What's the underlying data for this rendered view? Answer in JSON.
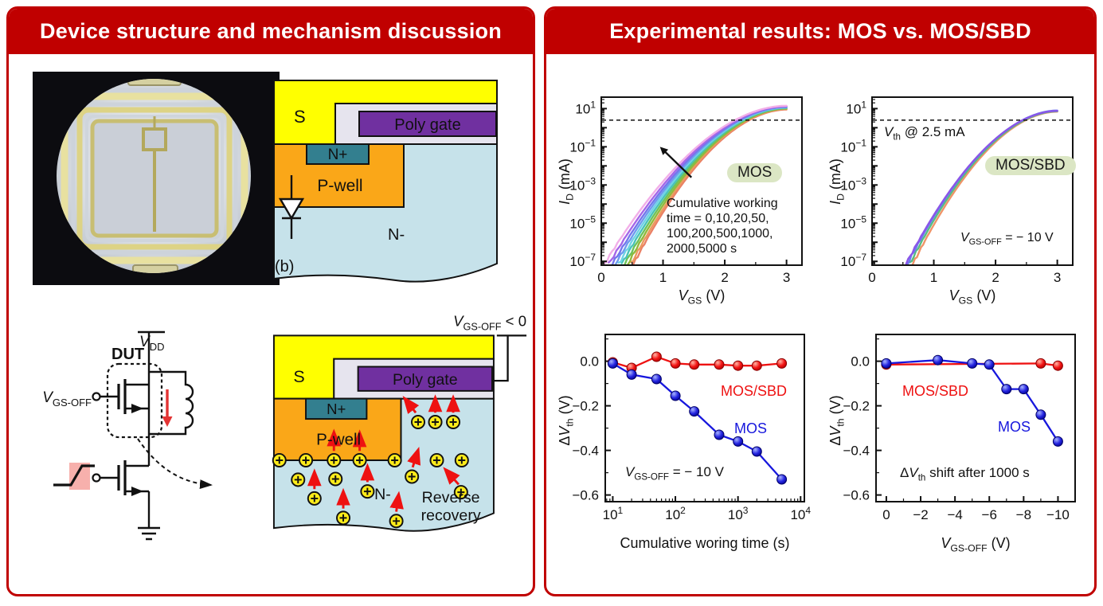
{
  "theme": {
    "accent_red": "#c00000",
    "badge_bg": "#dbe6c4",
    "series_red": "#ee1111",
    "series_blue": "#1717dd"
  },
  "left_panel": {
    "title": "Device structure and mechanism discussion",
    "cross_section_b": {
      "s": "S",
      "poly": "Poly gate",
      "nplus": "N+",
      "pwell": "P-well",
      "nminus": "N-",
      "tag": "(b)"
    },
    "circuit": {
      "vdd_main": "V",
      "vdd_sub": "DD",
      "dut": "DUT",
      "vgs_main": "V",
      "vgs_sub": "GS-OFF"
    },
    "cross_section_stress": {
      "bias_main": "V",
      "bias_sub": "GS-OFF",
      "bias_post": " < 0",
      "s": "S",
      "poly": "Poly gate",
      "nplus": "N+",
      "pwell": "P-well",
      "nminus": "N-",
      "rev1": "Reverse",
      "rev2": "recovery"
    }
  },
  "right_panel": {
    "title": "Experimental results: MOS vs. MOS/SBD"
  },
  "chart_data": [
    {
      "kind": "transfer",
      "type": "line",
      "badge": "MOS",
      "xlabel": {
        "main": "V",
        "sub": "GS",
        "unit": " (V)"
      },
      "ylabel": {
        "main": "I",
        "sub": "D",
        "unit": " (mA)"
      },
      "x_range": [
        0,
        3.25
      ],
      "x_ticks": [
        0,
        1,
        2,
        3
      ],
      "y_scale": "log",
      "y_exp_range": [
        -7.2,
        1.6
      ],
      "y_tick_exponents": [
        1,
        -1,
        -3,
        -5,
        -7
      ],
      "threshold_mA": 2.5,
      "note_lines": [
        "Cumulative working",
        "time = 0,10,20,50,",
        "100,200,500,1000,",
        "2000,5000 s"
      ],
      "arrow": {
        "from_x": 1.46,
        "from_logI": -2.6,
        "to_x": 0.95,
        "to_logI": -1.0
      },
      "series": [
        {
          "time_s": 0,
          "color": "#ea8066",
          "onset_V": 0.52,
          "logI_at_3V": 0.95
        },
        {
          "time_s": 10,
          "color": "#eb9a5e",
          "onset_V": 0.48,
          "logI_at_3V": 0.98
        },
        {
          "time_s": 20,
          "color": "#93b83a",
          "onset_V": 0.43,
          "logI_at_3V": 1.0
        },
        {
          "time_s": 50,
          "color": "#6cc35a",
          "onset_V": 0.38,
          "logI_at_3V": 1.02
        },
        {
          "time_s": 100,
          "color": "#49c3b8",
          "onset_V": 0.33,
          "logI_at_3V": 1.04
        },
        {
          "time_s": 200,
          "color": "#6fd3e6",
          "onset_V": 0.28,
          "logI_at_3V": 1.06
        },
        {
          "time_s": 500,
          "color": "#6f9cee",
          "onset_V": 0.23,
          "logI_at_3V": 1.08
        },
        {
          "time_s": 1000,
          "color": "#7576ec",
          "onset_V": 0.18,
          "logI_at_3V": 1.1
        },
        {
          "time_s": 2000,
          "color": "#a566e8",
          "onset_V": 0.12,
          "logI_at_3V": 1.12
        },
        {
          "time_s": 5000,
          "color": "#f2aee8",
          "onset_V": 0.05,
          "logI_at_3V": 1.15
        }
      ]
    },
    {
      "kind": "transfer",
      "type": "line",
      "badge": "MOS/SBD",
      "xlabel": {
        "main": "V",
        "sub": "GS",
        "unit": " (V)"
      },
      "ylabel": {
        "main": "I",
        "sub": "D",
        "unit": " (mA)"
      },
      "x_range": [
        0,
        3.25
      ],
      "x_ticks": [
        0,
        1,
        2,
        3
      ],
      "y_scale": "log",
      "y_exp_range": [
        -7.2,
        1.6
      ],
      "y_tick_exponents": [
        1,
        -1,
        -3,
        -5,
        -7
      ],
      "threshold_mA": 2.5,
      "vth_note": {
        "main": "V",
        "sub": "th",
        "post": " @ 2.5 mA"
      },
      "bias_note": {
        "main": "V",
        "sub": "GS-OFF",
        "post": " = − 10 V"
      },
      "series": [
        {
          "color": "#ef9468",
          "onset_V": 0.66,
          "logI_at_3V": 0.84
        },
        {
          "color": "#57bd82",
          "onset_V": 0.61,
          "logI_at_3V": 0.86
        },
        {
          "color": "#6b7cf0",
          "onset_V": 0.57,
          "logI_at_3V": 0.9
        },
        {
          "color": "#8a55e8",
          "onset_V": 0.55,
          "logI_at_3V": 0.88
        }
      ]
    },
    {
      "kind": "shift",
      "type": "scatter-line",
      "x_log": true,
      "xlabel_text": "Cumulative woring time (s)",
      "ylabel": {
        "prefix": "Δ",
        "main": "V",
        "sub": "th",
        "unit": " (V)"
      },
      "x_exp_range": [
        0.88,
        4.06
      ],
      "x_tick_exponents": [
        1,
        2,
        3,
        4
      ],
      "y_range": [
        -0.63,
        0.12
      ],
      "y_ticks": [
        0,
        -0.2,
        -0.4,
        -0.6
      ],
      "bias_note": {
        "main": "V",
        "sub": "GS-OFF",
        "post": " = − 10 V"
      },
      "series": [
        {
          "name": "MOS/SBD",
          "color": "#ee1111",
          "x": [
            10,
            20,
            50,
            100,
            200,
            500,
            1000,
            2000,
            5000
          ],
          "y": [
            -0.005,
            -0.03,
            0.02,
            -0.01,
            -0.015,
            -0.015,
            -0.02,
            -0.02,
            -0.01
          ]
        },
        {
          "name": "MOS",
          "color": "#1717dd",
          "x": [
            10,
            20,
            50,
            100,
            200,
            500,
            1000,
            2000,
            5000
          ],
          "y": [
            -0.01,
            -0.06,
            -0.08,
            -0.155,
            -0.225,
            -0.33,
            -0.36,
            -0.405,
            -0.53
          ]
        }
      ]
    },
    {
      "kind": "shift",
      "type": "scatter-line",
      "x_log": false,
      "xlabel": {
        "main": "V",
        "sub": "GS-OFF",
        "unit": " (V)"
      },
      "ylabel": {
        "prefix": "Δ",
        "main": "V",
        "sub": "th",
        "unit": " (V)"
      },
      "x_range": [
        0.6,
        -11
      ],
      "x_ticks": [
        0,
        -2,
        -4,
        -6,
        -8,
        -10
      ],
      "y_range": [
        -0.63,
        0.12
      ],
      "y_ticks": [
        0,
        -0.2,
        -0.4,
        -0.6
      ],
      "note": {
        "prefix": "Δ",
        "main": "V",
        "sub": "th",
        "post": " shift after 1000 s"
      },
      "series": [
        {
          "name": "MOS/SBD",
          "color": "#ee1111",
          "x": [
            0,
            -9,
            -10
          ],
          "y": [
            -0.015,
            -0.01,
            -0.02
          ]
        },
        {
          "name": "MOS",
          "color": "#1717dd",
          "x": [
            0,
            -3,
            -5,
            -6,
            -7,
            -8,
            -9,
            -10
          ],
          "y": [
            -0.01,
            0.005,
            -0.01,
            -0.015,
            -0.125,
            -0.125,
            -0.24,
            -0.36
          ]
        }
      ]
    }
  ]
}
